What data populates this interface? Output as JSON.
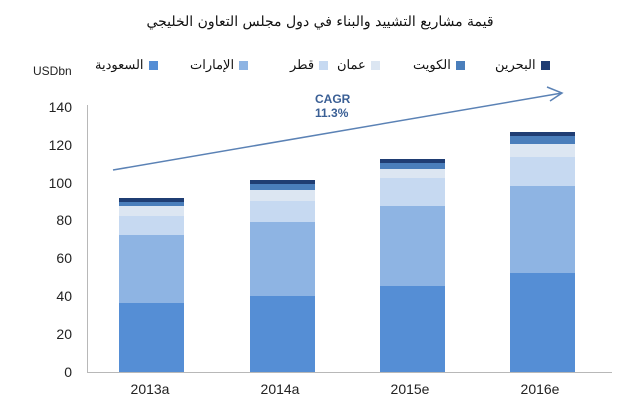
{
  "title": "قيمة مشاريع التشييد والبناء في دول مجلس التعاون الخليجي",
  "unit": "USDbn",
  "legend": [
    {
      "label": "السعودية",
      "color": "#558ed5"
    },
    {
      "label": "الإمارات",
      "color": "#8eb4e3"
    },
    {
      "label": "قطر",
      "color": "#c6d9f1"
    },
    {
      "label": "عمان",
      "color": "#dce6f2"
    },
    {
      "label": "الكويت",
      "color": "#4a7ebb"
    },
    {
      "label": "البحرين",
      "color": "#1f3d73"
    }
  ],
  "annotation": {
    "line1": "CAGR",
    "line2": "11.3%"
  },
  "chart_data": {
    "type": "bar",
    "stacked": true,
    "title": "قيمة مشاريع التشييد والبناء في دول مجلس التعاون الخليجي",
    "xlabel": "",
    "ylabel": "USDbn",
    "ylim": [
      0,
      140
    ],
    "yticks": [
      0,
      20,
      40,
      60,
      80,
      100,
      120,
      140
    ],
    "grid": false,
    "legend_position": "top",
    "categories": [
      "2013a",
      "2014a",
      "2015e",
      "2016e"
    ],
    "series": [
      {
        "name": "السعودية",
        "color": "#558ed5",
        "values": [
          36.5,
          40.1,
          45.4,
          52.1
        ]
      },
      {
        "name": "الإمارات",
        "color": "#8eb4e3",
        "values": [
          36.0,
          38.9,
          42.3,
          46.3
        ]
      },
      {
        "name": "قطر",
        "color": "#c6d9f1",
        "values": [
          9.7,
          11.3,
          14.6,
          15.3
        ]
      },
      {
        "name": "عمان",
        "color": "#dce6f2",
        "values": [
          5.3,
          5.8,
          4.9,
          6.7
        ]
      },
      {
        "name": "الكويت",
        "color": "#4a7ebb",
        "values": [
          2.1,
          3.5,
          3.3,
          4.2
        ]
      },
      {
        "name": "البحرين",
        "color": "#1f3d73",
        "values": [
          2.1,
          1.8,
          2.1,
          2.3
        ]
      }
    ],
    "totals": [
      91.7,
      101.4,
      112.6,
      126.9
    ],
    "annotations": [
      {
        "text": "CAGR 11.3%",
        "type": "arrow",
        "from": "2013a",
        "to": "2016e"
      }
    ]
  }
}
